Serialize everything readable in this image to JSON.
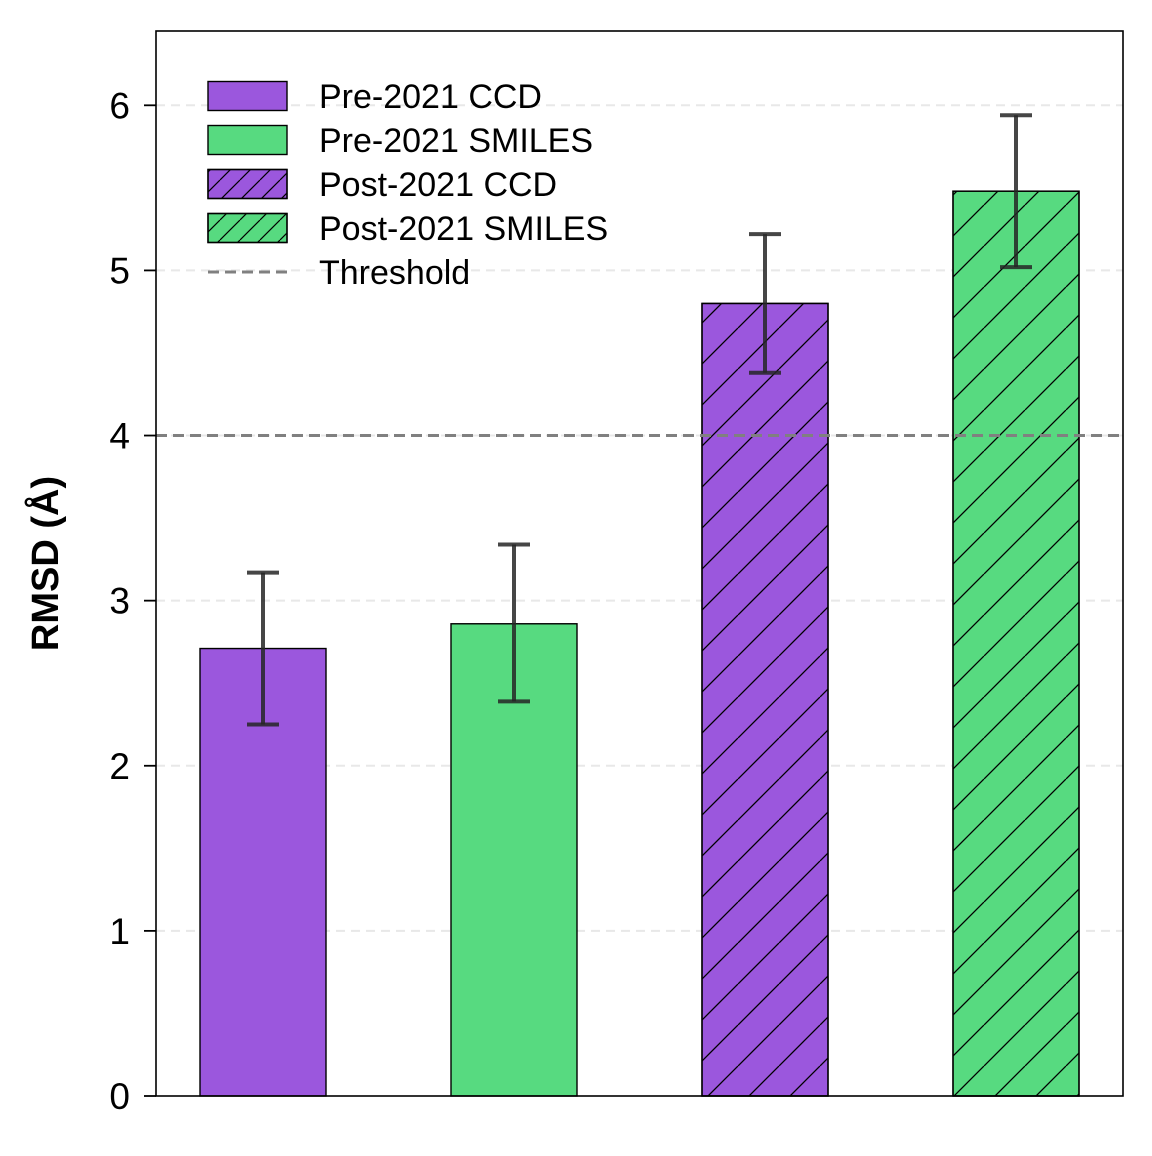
{
  "chart_data": {
    "type": "bar",
    "ylabel": "RMSD (Å)",
    "xlabel": "",
    "title": "",
    "ylim": [
      0,
      6.45
    ],
    "yticks": [
      0,
      1,
      2,
      3,
      4,
      5,
      6
    ],
    "grid": "y-dashed",
    "legend_position": "top-left",
    "threshold": {
      "label": "Threshold",
      "value": 4.0,
      "color": "#808080",
      "style": "dashed"
    },
    "series": [
      {
        "name": "Pre-2021 CCD",
        "value": 2.71,
        "error_low": 2.25,
        "error_high": 3.17,
        "color": "#9b57dd",
        "hatch": false
      },
      {
        "name": "Pre-2021 SMILES",
        "value": 2.86,
        "error_low": 2.39,
        "error_high": 3.34,
        "color": "#57da80",
        "hatch": false
      },
      {
        "name": "Post-2021 CCD",
        "value": 4.8,
        "error_low": 4.38,
        "error_high": 5.22,
        "color": "#9b57dd",
        "hatch": true
      },
      {
        "name": "Post-2021 SMILES",
        "value": 5.48,
        "error_low": 5.02,
        "error_high": 5.94,
        "color": "#57da80",
        "hatch": true
      }
    ]
  }
}
